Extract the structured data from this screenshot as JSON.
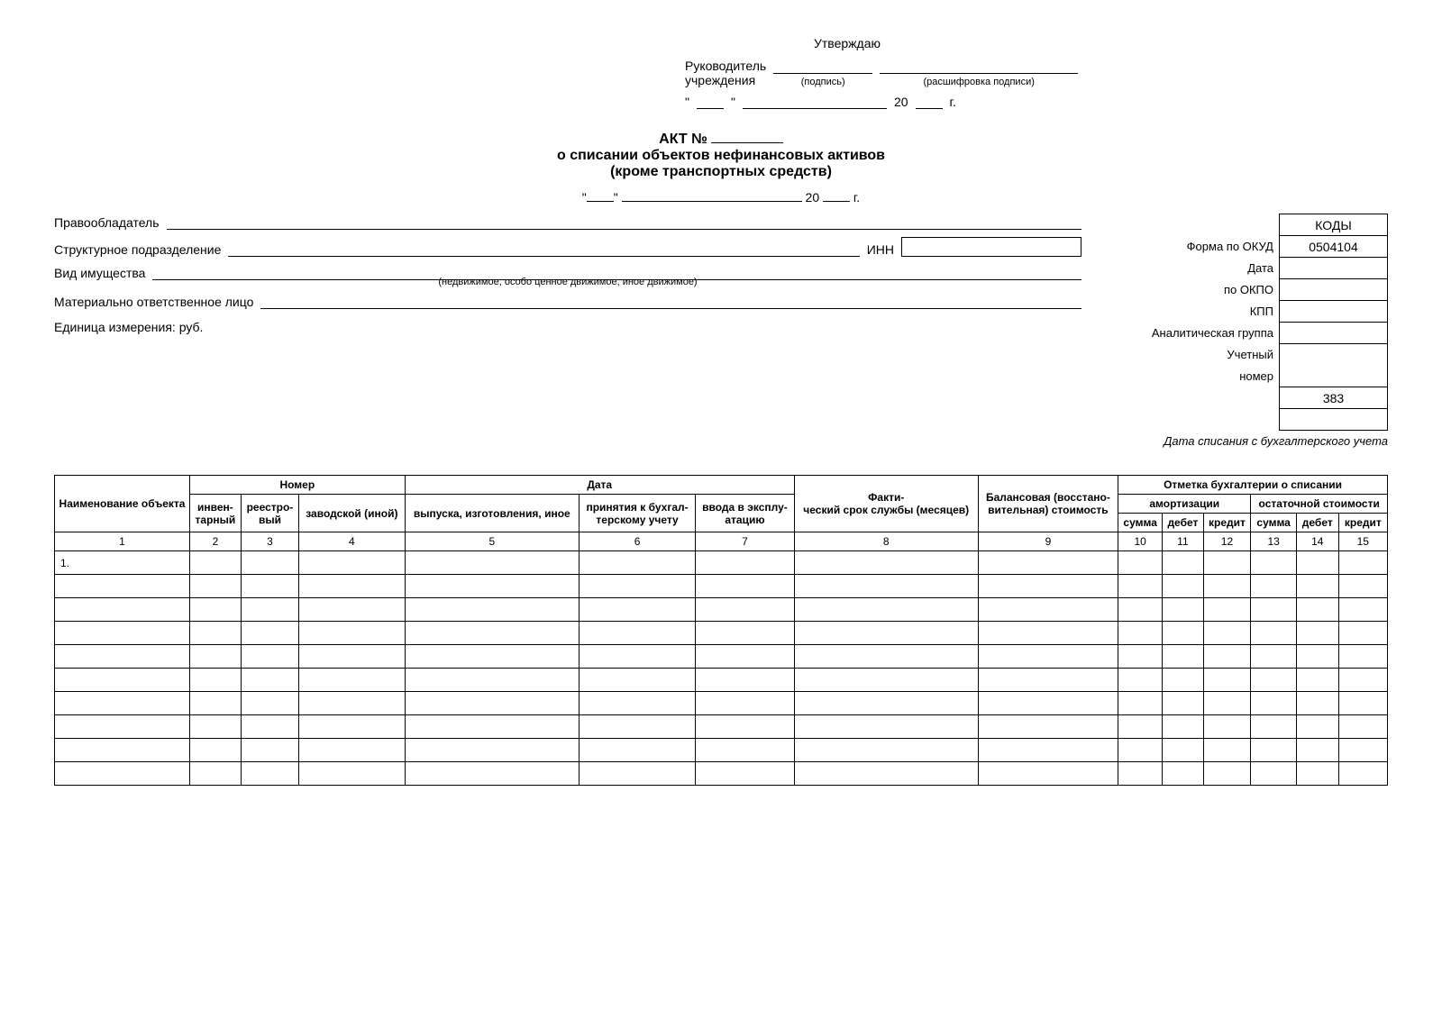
{
  "approval": {
    "title": "Утверждаю",
    "leader_label1": "Руководитель",
    "leader_label2": "учреждения",
    "sign_hint": "(подпись)",
    "decipher_hint": "(расшифровка подписи)",
    "year_prefix": "20",
    "year_suffix": "г."
  },
  "title": {
    "act": "АКТ №",
    "line1": "о списании объектов нефинансовых активов",
    "line2": "(кроме транспортных средств)",
    "year_prefix": "20",
    "year_suffix": "г."
  },
  "header": {
    "owner_label": "Правообладатель",
    "dept_label": "Структурное подразделение",
    "inn_label": "ИНН",
    "property_label": "Вид имущества",
    "property_hint": "(недвижимое, особо ценное движимое, иное движимое)",
    "resp_label": "Материально ответственное лицо",
    "unit_label": "Единица измерения: руб."
  },
  "codes": {
    "head": "КОДЫ",
    "okud_label": "Форма по ОКУД",
    "okud_value": "0504104",
    "date_label": "Дата",
    "okpo_label": "по ОКПО",
    "kpp_label": "КПП",
    "analytic_label": "Аналитическая группа",
    "account_label1": "Учетный",
    "account_label2": "номер",
    "unit_code": "383",
    "writeoff_note": "Дата списания с бухгалтерского учета"
  },
  "table": {
    "headers": {
      "name": "Наименование объекта",
      "number": "Номер",
      "inventory": "инвен-\nтарный",
      "registry": "реестро-\nвый",
      "factory": "заводской (иной)",
      "date": "Дата",
      "manufacture": "выпуска, изготовления, иное",
      "accounting": "принятия к бухгал-\nтерскому учету",
      "operation": "ввода в эксплу-\nатацию",
      "lifetime": "Факти-\nческий срок службы (месяцев)",
      "balance": "Балансовая (восстано-\nвительная) стоимость",
      "mark": "Отметка бухгалтерии о списании",
      "amort": "амортизации",
      "residual": "остаточной стоимости",
      "sum": "сумма",
      "debit": "дебет",
      "credit": "кредит"
    },
    "col_nums": [
      "1",
      "2",
      "3",
      "4",
      "5",
      "6",
      "7",
      "8",
      "9",
      "10",
      "11",
      "12",
      "13",
      "14",
      "15"
    ],
    "first_row": "1.",
    "empty_rows": 10
  }
}
